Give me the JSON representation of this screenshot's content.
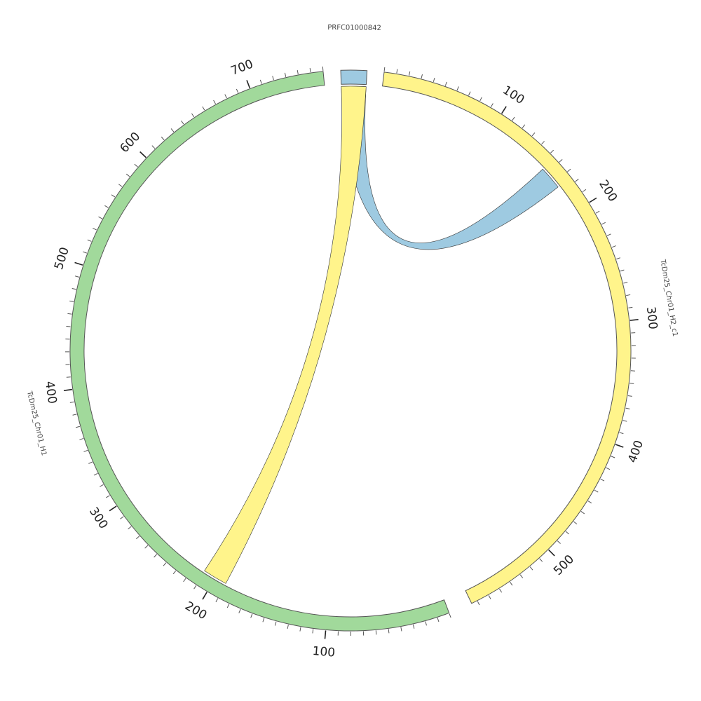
{
  "diagram": {
    "type": "circos",
    "tick_step": 10,
    "label_step": 100,
    "segments": [
      {
        "id": "contig",
        "name": "PRFC01000842",
        "length": 21,
        "color": "#9ecae1",
        "show_ticks": false
      },
      {
        "id": "h2",
        "name": "TcDm25_Chr01_H2_c1",
        "length": 575,
        "color": "#fff48b",
        "show_ticks": true
      },
      {
        "id": "h1",
        "name": "TcDm25_Chr01_H1",
        "length": 760,
        "color": "#a1d99b",
        "show_ticks": true
      }
    ],
    "links": [
      {
        "from": "contig",
        "from_start": 0,
        "from_end": 21,
        "to": "h2",
        "to_start": 155,
        "to_end": 175,
        "color": "#9ecae1"
      },
      {
        "from": "contig",
        "from_start": 0,
        "from_end": 21,
        "to": "h1",
        "to_start": 190,
        "to_end": 211,
        "color": "#fff48b"
      }
    ]
  }
}
